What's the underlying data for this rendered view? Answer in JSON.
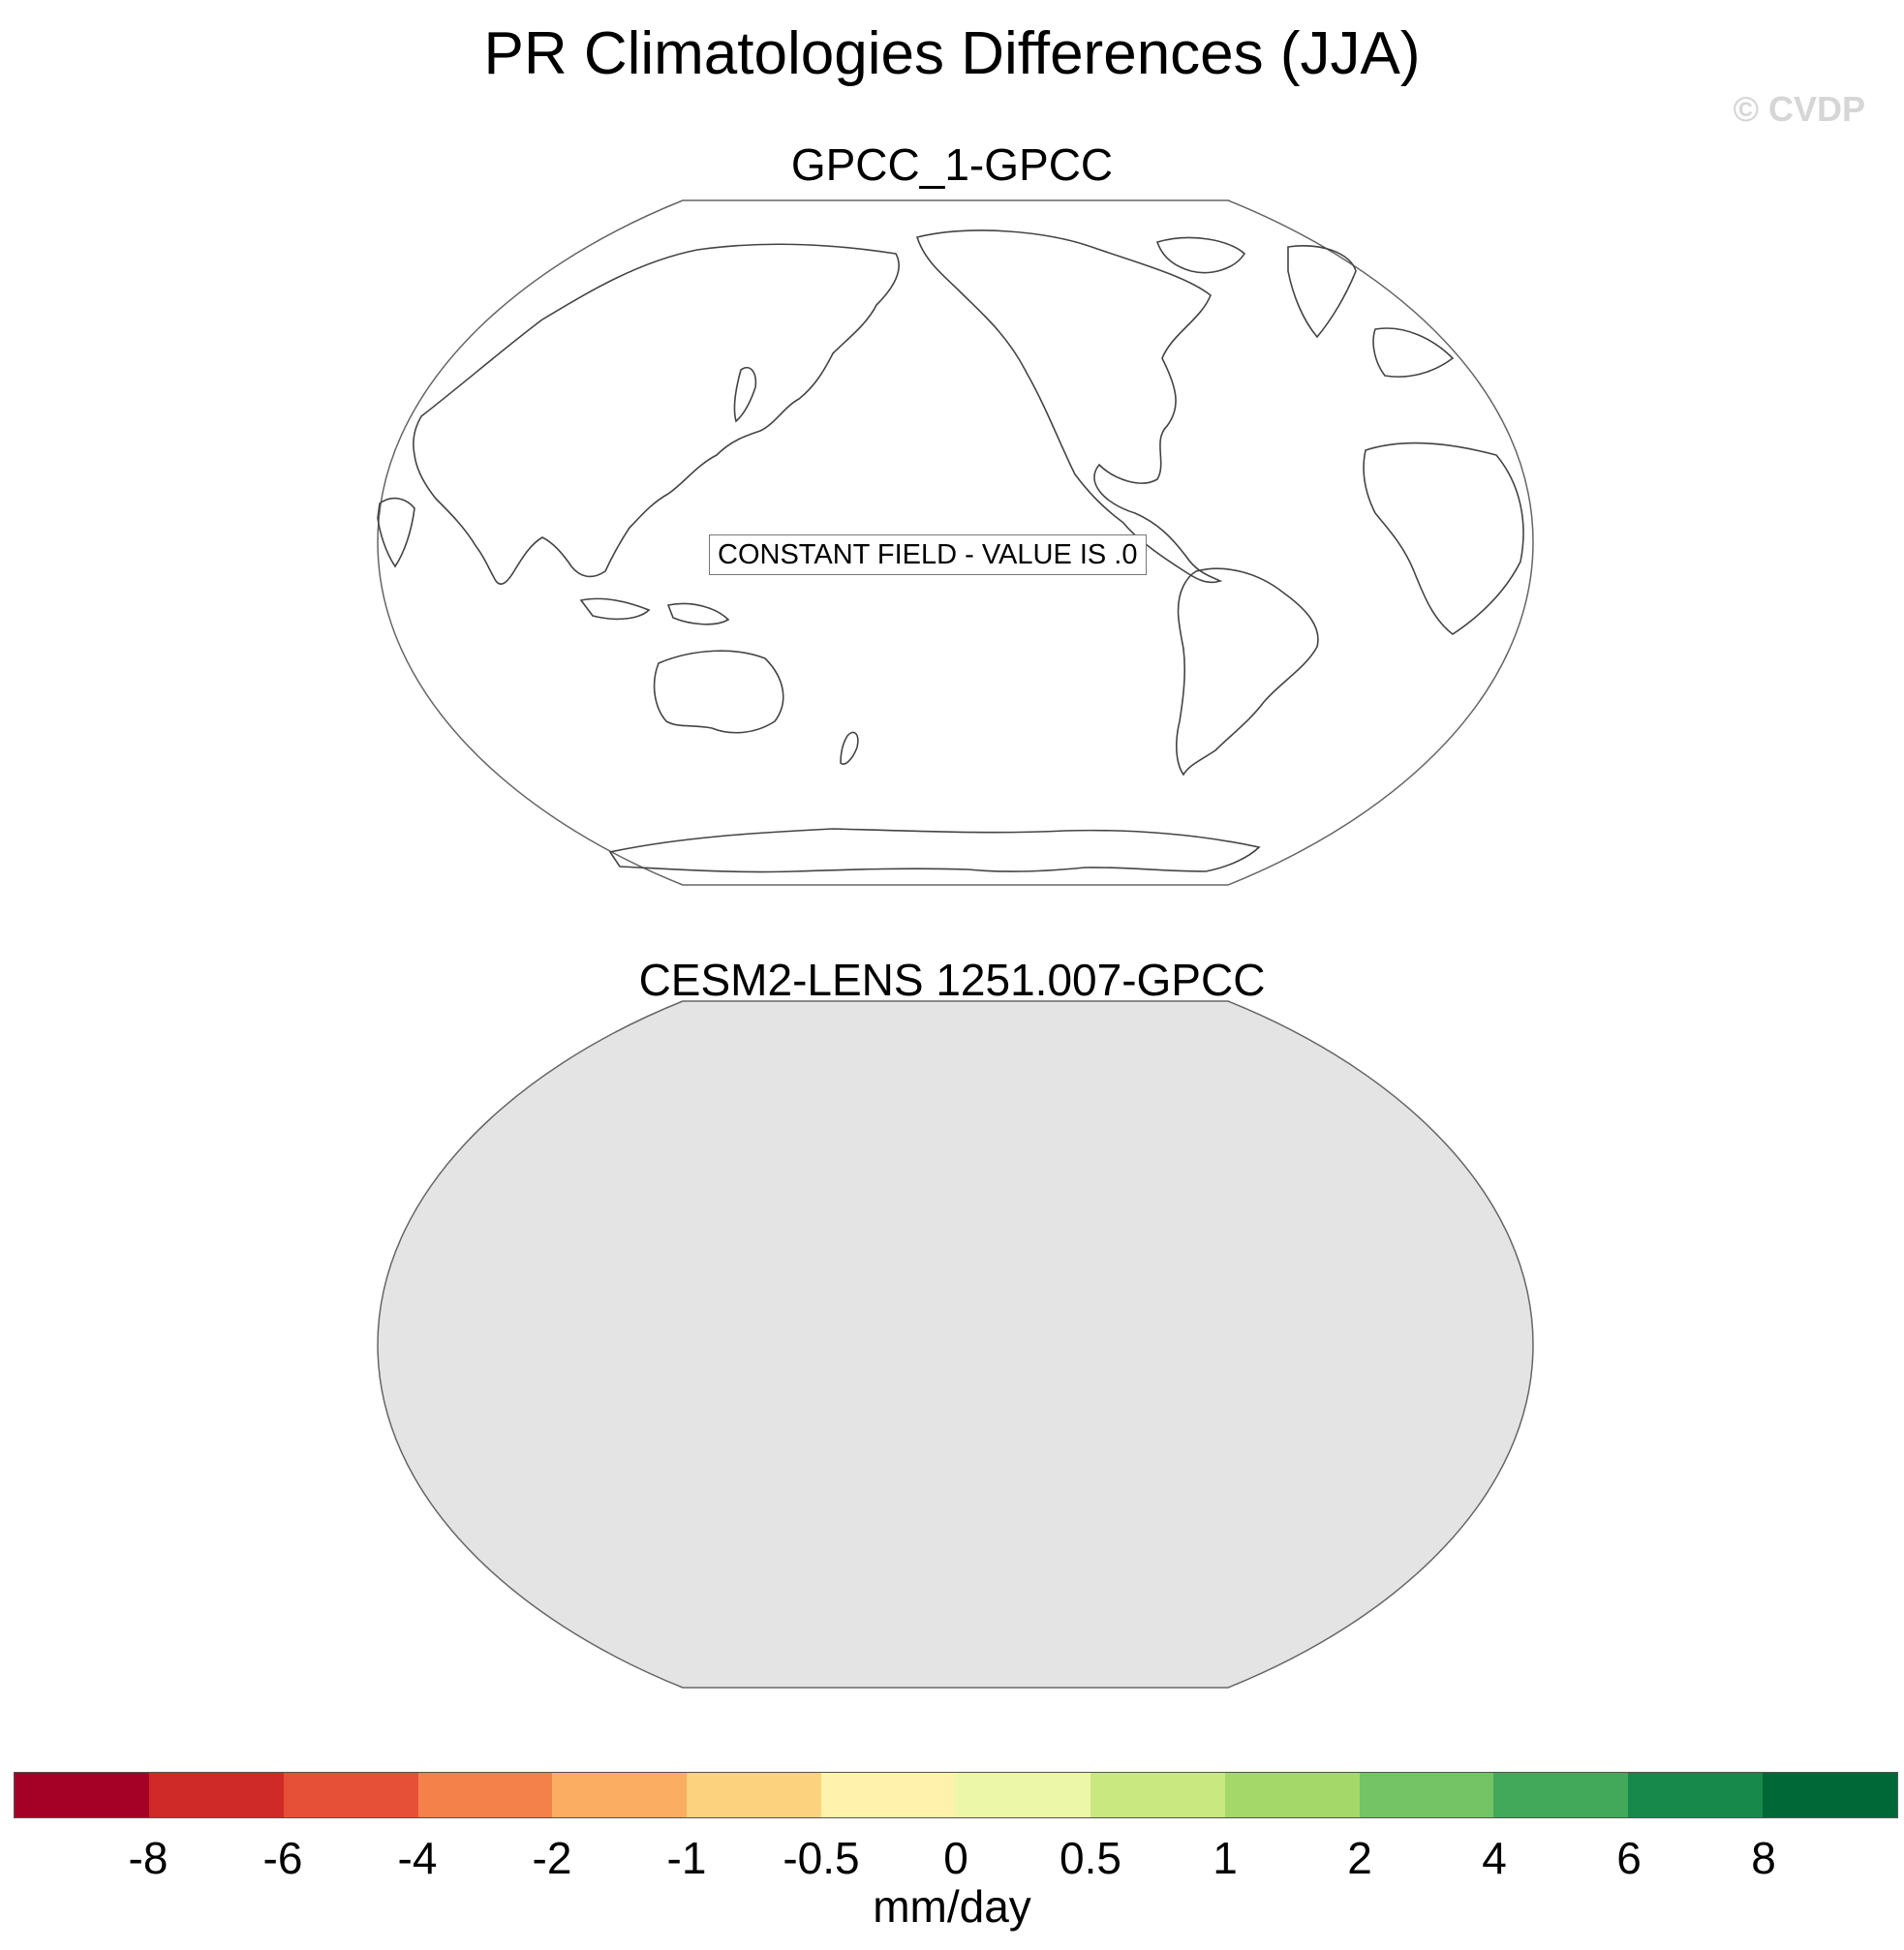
{
  "figure": {
    "title": "PR Climatologies Differences (JJA)",
    "watermark": "© CVDP"
  },
  "panels": [
    {
      "title": "GPCC_1-GPCC",
      "note": "CONSTANT FIELD - VALUE IS .0"
    },
    {
      "title": "CESM2-LENS 1251.007-GPCC"
    }
  ],
  "colorbar": {
    "colors": [
      "#a50026",
      "#d02a28",
      "#e65036",
      "#f4814a",
      "#fbae61",
      "#fdd27f",
      "#fff2ad",
      "#edf7a8",
      "#c9e880",
      "#a4d869",
      "#74c364",
      "#42a85a",
      "#17894b",
      "#006837"
    ],
    "labels": [
      "-8",
      "-6",
      "-4",
      "-2",
      "-1",
      "-0.5",
      "0",
      "0.5",
      "1",
      "2",
      "4",
      "6",
      "8"
    ],
    "units": "mm/day"
  },
  "colors": {
    "ocean_fill": "#e4e4e4",
    "coast": "#555555"
  }
}
